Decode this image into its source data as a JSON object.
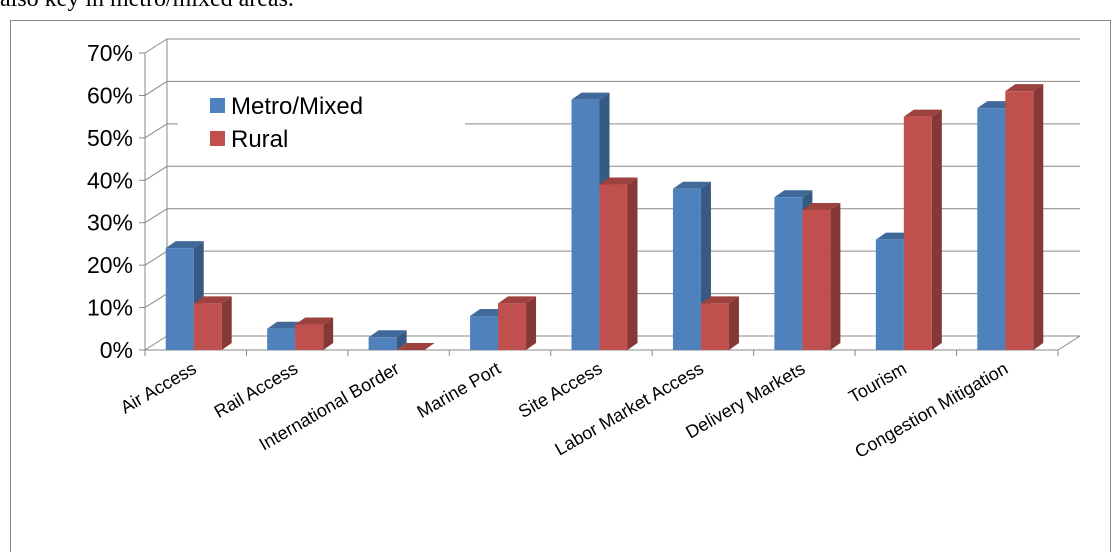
{
  "paragraph_fragment": "also key in metro/mixed areas.",
  "chart_data": {
    "type": "bar3d",
    "categories": [
      "Air Access",
      "Rail Access",
      "International Border",
      "Marine Port",
      "Site Access",
      "Labor Market Access",
      "Delivery Markets",
      "Tourism",
      "Congestion Mitigation"
    ],
    "series": [
      {
        "name": "Metro/Mixed",
        "color": "#4f81bd",
        "values": [
          24,
          5,
          3,
          8,
          59,
          38,
          36,
          26,
          57
        ]
      },
      {
        "name": "Rural",
        "color": "#c0504d",
        "values": [
          11,
          6,
          0,
          11,
          39,
          11,
          33,
          55,
          61
        ]
      }
    ],
    "ylim": [
      0,
      70
    ],
    "yticks": [
      {
        "value": 0,
        "label": "0%"
      },
      {
        "value": 10,
        "label": "10%"
      },
      {
        "value": 20,
        "label": "20%"
      },
      {
        "value": 30,
        "label": "30%"
      },
      {
        "value": 40,
        "label": "40%"
      },
      {
        "value": 50,
        "label": "50%"
      },
      {
        "value": 60,
        "label": "60%"
      },
      {
        "value": 70,
        "label": "70%"
      }
    ],
    "grid": true,
    "legend": "upper left"
  }
}
